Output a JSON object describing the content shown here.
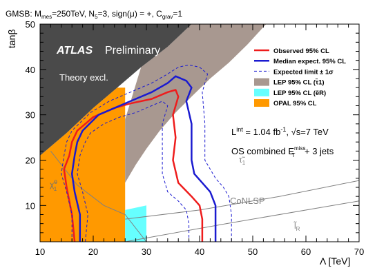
{
  "header": {
    "pre": "GMSB: M",
    "sub_mes": "mes",
    "mid1": "=250TeV, N",
    "sub_5": "5",
    "mid2": "=3, sign(μ) = +, C",
    "sub_grav": "grav",
    "post": "=1"
  },
  "chart_data": {
    "type": "line",
    "xlabel": "Λ [TeV]",
    "ylabel": "tanβ",
    "xlim": [
      10,
      70
    ],
    "ylim": [
      2,
      50
    ],
    "x_ticks": [
      "10",
      "20",
      "30",
      "40",
      "50",
      "60",
      "70"
    ],
    "y_ticks": [
      "10",
      "20",
      "30",
      "40",
      "50"
    ],
    "colors": {
      "theory": "#4a4a4a",
      "lep_stau": "#a89890",
      "lep_selectron": "#66ffff",
      "opal": "#ff9900",
      "observed": "#ee1c1c",
      "expected": "#1a1ad0",
      "band": "#1a1ad0",
      "conlsp": "#808080"
    },
    "regions": {
      "theory_excl": [
        [
          10,
          50
        ],
        [
          38.5,
          50
        ],
        [
          34,
          45
        ],
        [
          29,
          40.5
        ],
        [
          24.5,
          36
        ],
        [
          20,
          31.5
        ],
        [
          15,
          26
        ],
        [
          10,
          21
        ]
      ],
      "lep_stau": [
        [
          38.5,
          50
        ],
        [
          52.5,
          50
        ],
        [
          49,
          45.5
        ],
        [
          45.5,
          41.5
        ],
        [
          42,
          38
        ],
        [
          38.5,
          34
        ],
        [
          35.5,
          30.5
        ],
        [
          32.5,
          26.5
        ],
        [
          30,
          22.5
        ],
        [
          28,
          19
        ],
        [
          26,
          15
        ],
        [
          26,
          29
        ],
        [
          29,
          40.5
        ],
        [
          34,
          45
        ]
      ],
      "lep_selectron": [
        [
          26,
          2
        ],
        [
          30,
          2
        ],
        [
          30,
          10
        ],
        [
          26,
          9
        ]
      ],
      "opal": [
        [
          10,
          2
        ],
        [
          26,
          2
        ],
        [
          26,
          36
        ],
        [
          24.5,
          36
        ],
        [
          20,
          31.5
        ],
        [
          15,
          26
        ],
        [
          10,
          21
        ]
      ]
    },
    "series": [
      {
        "name": "Observed 95% CL",
        "style": "solid",
        "points": [
          [
            16.5,
            2
          ],
          [
            16,
            8
          ],
          [
            15,
            14
          ],
          [
            14.5,
            18
          ],
          [
            15.5,
            21
          ],
          [
            16,
            24
          ],
          [
            17,
            26.5
          ],
          [
            20,
            29.5
          ],
          [
            24,
            31.5
          ],
          [
            27,
            32.5
          ],
          [
            31,
            33.5
          ],
          [
            34,
            35
          ],
          [
            35.5,
            35.5
          ],
          [
            36,
            34
          ],
          [
            35,
            30
          ],
          [
            35.5,
            25
          ],
          [
            35,
            20
          ],
          [
            36,
            15
          ],
          [
            38.5,
            12
          ],
          [
            40,
            10
          ],
          [
            40.5,
            7
          ],
          [
            40.5,
            2
          ]
        ]
      },
      {
        "name": "Median expect. 95% CL",
        "style": "solid",
        "points": [
          [
            17.5,
            2
          ],
          [
            17.5,
            8
          ],
          [
            16.5,
            13
          ],
          [
            16,
            17
          ],
          [
            16.5,
            21
          ],
          [
            17,
            24
          ],
          [
            18,
            26.5
          ],
          [
            21,
            30
          ],
          [
            24,
            31.5
          ],
          [
            27,
            33
          ],
          [
            31,
            35
          ],
          [
            34,
            37
          ],
          [
            35.5,
            38.5
          ],
          [
            37.5,
            37.5
          ],
          [
            38.5,
            36
          ],
          [
            37.5,
            33
          ],
          [
            38.5,
            28
          ],
          [
            38.5,
            20
          ],
          [
            39,
            17
          ],
          [
            40.5,
            15
          ],
          [
            42,
            13
          ],
          [
            43,
            10
          ],
          [
            43,
            2
          ]
        ]
      },
      {
        "name": "Expected limit ± 1σ",
        "style": "dashed",
        "points": [
          [
            16,
            2
          ],
          [
            16,
            8
          ],
          [
            15,
            13
          ],
          [
            14,
            17
          ],
          [
            14.5,
            21
          ],
          [
            15,
            24
          ],
          [
            16,
            26.5
          ],
          [
            19.5,
            30.5
          ],
          [
            23,
            33
          ],
          [
            27,
            35
          ],
          [
            31,
            37
          ],
          [
            34,
            39
          ],
          [
            36,
            40.5
          ],
          [
            38,
            41
          ],
          [
            40,
            40.5
          ],
          [
            41.5,
            39
          ],
          [
            40.5,
            35
          ],
          [
            41,
            28
          ],
          [
            41,
            20
          ],
          [
            43,
            16
          ],
          [
            44.5,
            14
          ],
          [
            45.5,
            12
          ],
          [
            46,
            8
          ],
          [
            46,
            2
          ]
        ]
      },
      {
        "name": "Expected limit ± 1σ (lower)",
        "style": "dashed",
        "points": [
          [
            18.5,
            2
          ],
          [
            19,
            8
          ],
          [
            18,
            13
          ],
          [
            17,
            17
          ],
          [
            17.5,
            21
          ],
          [
            18.5,
            24
          ],
          [
            19.5,
            26
          ],
          [
            22,
            28
          ],
          [
            25,
            29.5
          ],
          [
            28,
            30.5
          ],
          [
            31,
            32
          ],
          [
            33,
            33
          ],
          [
            34,
            32
          ],
          [
            33,
            28
          ],
          [
            33,
            22
          ],
          [
            33,
            17
          ],
          [
            34,
            13
          ],
          [
            36,
            11
          ],
          [
            37.5,
            9
          ],
          [
            38,
            6
          ],
          [
            38,
            2
          ]
        ]
      }
    ],
    "conlsp_lines": [
      [
        [
          26,
          7
        ],
        [
          40,
          9
        ],
        [
          55,
          12
        ],
        [
          70,
          15.5
        ]
      ],
      [
        [
          26,
          2
        ],
        [
          45,
          6
        ],
        [
          70,
          11
        ]
      ]
    ],
    "chi_curve": [
      [
        12,
        22
      ],
      [
        16,
        16
      ],
      [
        17,
        14.5
      ],
      [
        22,
        10
      ],
      [
        26,
        8
      ],
      [
        30,
        2
      ]
    ],
    "legend": {
      "placement": "top-right",
      "entries": [
        {
          "label": "Observed 95% CL",
          "kind": "line",
          "color": "#ee1c1c"
        },
        {
          "label": "Median expect. 95% CL",
          "kind": "line",
          "color": "#1a1ad0"
        },
        {
          "label": "Expected limit ± 1σ",
          "kind": "dashed",
          "color": "#1a1ad0"
        },
        {
          "label": "LEP 95% CL (τ̃1)",
          "kind": "box",
          "color": "#a89890"
        },
        {
          "label": "LEP 95% CL (ẽR)",
          "kind": "box",
          "color": "#66ffff"
        },
        {
          "label": "OPAL 95% CL",
          "kind": "box",
          "color": "#ff9900"
        }
      ]
    },
    "annotations": {
      "atlas": "ATLAS",
      "preliminary": "Preliminary",
      "theory_excl": "Theory excl.",
      "lumi_a": "L",
      "lumi_sup": "int",
      "lumi_b": " = 1.04 fb",
      "lumi_sup2": "-1",
      "lumi_c": ", √s=7 TeV",
      "os_a": "OS combined  E",
      "os_sup": "miss",
      "os_sub": "T",
      "os_b": " + 3 jets",
      "stau": "τ̃",
      "stau_sub": "1",
      "conlsp": "CoNLSP",
      "lR": "l̃",
      "lR_sub": "R",
      "chi": "χ̃",
      "chi_sup": "0",
      "chi_sub": "1"
    }
  }
}
